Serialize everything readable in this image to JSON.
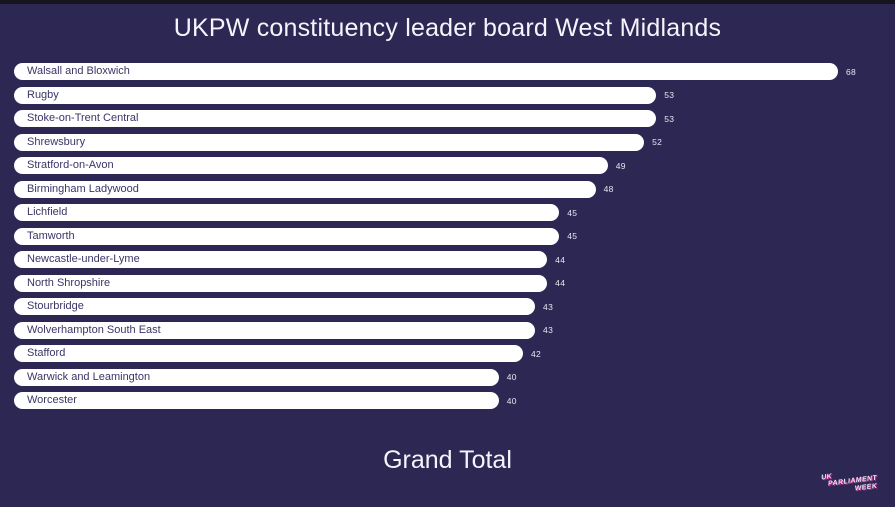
{
  "page": {
    "background_color": "#2d2754",
    "letterbox_color": "#18141f"
  },
  "title": "UKPW constituency leader board West Midlands",
  "axis": {
    "grand_total_label": "Grand Total"
  },
  "logo": {
    "name": "uk-parliament-week-logo",
    "lines": [
      "UK",
      "PARLIAMENT",
      "WEEK"
    ],
    "text_color": "#efeaf5",
    "accent_color": "#c92a8f"
  },
  "chart_data": {
    "type": "bar",
    "orientation": "horizontal",
    "title": "UKPW constituency leader board West Midlands",
    "xlabel": "Grand Total",
    "ylabel": "",
    "xlim": [
      0,
      68
    ],
    "grid": false,
    "legend": false,
    "bar_color": "#ffffff",
    "bar_label_color": "#3b3566",
    "value_label_color": "#e9e6f2",
    "categories": [
      "Walsall and Bloxwich",
      "Rugby",
      "Stoke-on-Trent Central",
      "Shrewsbury",
      "Stratford-on-Avon",
      "Birmingham Ladywood",
      "Lichfield",
      "Tamworth",
      "Newcastle-under-Lyme",
      "North Shropshire",
      "Stourbridge",
      "Wolverhampton South East",
      "Stafford",
      "Warwick and Leamington",
      "Worcester"
    ],
    "values": [
      68,
      53,
      53,
      52,
      49,
      48,
      45,
      45,
      44,
      44,
      43,
      43,
      42,
      40,
      40
    ]
  }
}
